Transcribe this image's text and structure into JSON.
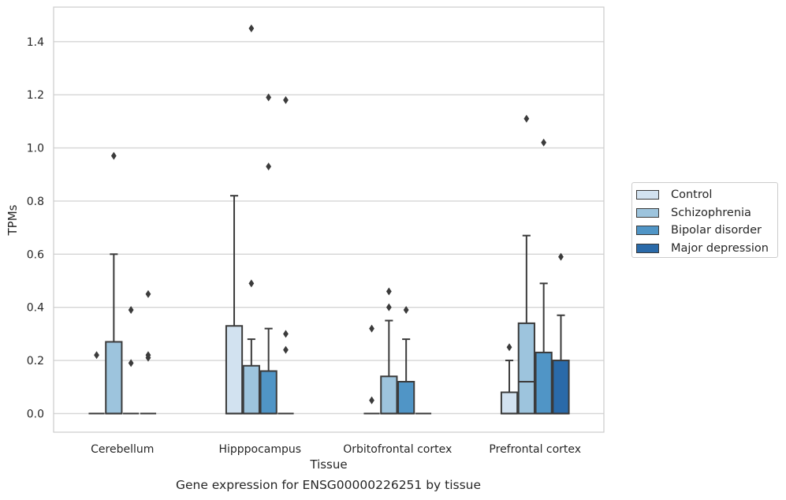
{
  "chart_data": {
    "type": "box",
    "xlabel": "Tissue",
    "ylabel": "TPMs",
    "caption": "Gene expression for ENSG00000226251 by tissue",
    "ylim": [
      -0.07,
      1.53
    ],
    "yticks": [
      "0.0",
      "0.2",
      "0.4",
      "0.6",
      "0.8",
      "1.0",
      "1.2",
      "1.4"
    ],
    "grid": true,
    "legend_position": "right",
    "categories": [
      "Cerebellum",
      "Hipppocampus",
      "Orbitofrontal cortex",
      "Prefrontal cortex"
    ],
    "series": [
      {
        "name": "Control",
        "color": "#d2e2f0"
      },
      {
        "name": "Schizophrenia",
        "color": "#9dc4dd"
      },
      {
        "name": "Bipolar disorder",
        "color": "#5095c6"
      },
      {
        "name": "Major depression",
        "color": "#2a6aa9"
      }
    ],
    "boxes": [
      [
        {
          "q1": 0,
          "median": 0,
          "q3": 0,
          "whisker_low": 0,
          "whisker_high": 0,
          "outliers": [
            0.22
          ]
        },
        {
          "q1": 0,
          "median": 0,
          "q3": 0.27,
          "whisker_low": 0,
          "whisker_high": 0.6,
          "outliers": [
            0.97
          ]
        },
        {
          "q1": 0,
          "median": 0,
          "q3": 0,
          "whisker_low": 0,
          "whisker_high": 0,
          "outliers": [
            0.39,
            0.19
          ]
        },
        {
          "q1": 0,
          "median": 0,
          "q3": 0,
          "whisker_low": 0,
          "whisker_high": 0,
          "outliers": [
            0.45,
            0.22,
            0.21
          ]
        }
      ],
      [
        {
          "q1": 0,
          "median": 0,
          "q3": 0.33,
          "whisker_low": 0,
          "whisker_high": 0.82,
          "outliers": []
        },
        {
          "q1": 0,
          "median": 0,
          "q3": 0.18,
          "whisker_low": 0,
          "whisker_high": 0.28,
          "outliers": [
            1.45,
            0.49
          ]
        },
        {
          "q1": 0,
          "median": 0,
          "q3": 0.16,
          "whisker_low": 0,
          "whisker_high": 0.32,
          "outliers": [
            1.19,
            0.93
          ]
        },
        {
          "q1": 0,
          "median": 0,
          "q3": 0,
          "whisker_low": 0,
          "whisker_high": 0,
          "outliers": [
            1.18,
            0.3,
            0.24
          ]
        }
      ],
      [
        {
          "q1": 0,
          "median": 0,
          "q3": 0,
          "whisker_low": 0,
          "whisker_high": 0,
          "outliers": [
            0.32,
            0.05
          ]
        },
        {
          "q1": 0,
          "median": 0,
          "q3": 0.14,
          "whisker_low": 0,
          "whisker_high": 0.35,
          "outliers": [
            0.46,
            0.4
          ]
        },
        {
          "q1": 0,
          "median": 0,
          "q3": 0.12,
          "whisker_low": 0,
          "whisker_high": 0.28,
          "outliers": [
            0.39
          ]
        },
        {
          "q1": 0,
          "median": 0,
          "q3": 0,
          "whisker_low": 0,
          "whisker_high": 0,
          "outliers": []
        }
      ],
      [
        {
          "q1": 0,
          "median": 0,
          "q3": 0.08,
          "whisker_low": 0,
          "whisker_high": 0.2,
          "outliers": [
            0.25
          ]
        },
        {
          "q1": 0,
          "median": 0.12,
          "q3": 0.34,
          "whisker_low": 0,
          "whisker_high": 0.67,
          "outliers": [
            1.11
          ]
        },
        {
          "q1": 0,
          "median": 0,
          "q3": 0.23,
          "whisker_low": 0,
          "whisker_high": 0.49,
          "outliers": [
            1.02
          ]
        },
        {
          "q1": 0,
          "median": 0,
          "q3": 0.2,
          "whisker_low": 0,
          "whisker_high": 0.37,
          "outliers": [
            0.59
          ]
        }
      ]
    ]
  }
}
